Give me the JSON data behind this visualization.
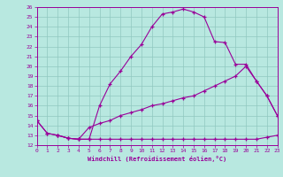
{
  "xlabel": "Windchill (Refroidissement éolien,°C)",
  "bg_color": "#b8e8e0",
  "grid_color": "#90c8c0",
  "line_color": "#990099",
  "xmin": 0,
  "xmax": 23,
  "ymin": 12,
  "ymax": 26,
  "series1_x": [
    0,
    1,
    2,
    3,
    4,
    5,
    6,
    7,
    8,
    9,
    10,
    11,
    12,
    13,
    14,
    15,
    16,
    17,
    18,
    19,
    20,
    21,
    22,
    23
  ],
  "series1_y": [
    14.5,
    13.2,
    13.0,
    12.7,
    12.6,
    12.6,
    16.0,
    18.2,
    19.5,
    21.0,
    22.2,
    24.0,
    25.3,
    25.5,
    25.8,
    25.5,
    25.0,
    22.5,
    22.4,
    20.2,
    20.2,
    18.5,
    17.0,
    15.0
  ],
  "series2_x": [
    0,
    1,
    2,
    3,
    4,
    5,
    6,
    7,
    8,
    9,
    10,
    11,
    12,
    13,
    14,
    15,
    16,
    17,
    18,
    19,
    20,
    21,
    22,
    23
  ],
  "series2_y": [
    14.5,
    13.2,
    13.0,
    12.7,
    12.6,
    13.8,
    14.2,
    14.5,
    15.0,
    15.3,
    15.6,
    16.0,
    16.2,
    16.5,
    16.8,
    17.0,
    17.5,
    18.0,
    18.5,
    19.0,
    20.0,
    18.5,
    17.0,
    15.0
  ],
  "series3_x": [
    2,
    3,
    4,
    5,
    6,
    7,
    8,
    9,
    10,
    11,
    12,
    13,
    14,
    15,
    16,
    17,
    18,
    19,
    20,
    21,
    22,
    23
  ],
  "series3_y": [
    13.0,
    12.7,
    12.6,
    12.6,
    12.6,
    12.6,
    12.6,
    12.6,
    12.6,
    12.6,
    12.6,
    12.6,
    12.6,
    12.6,
    12.6,
    12.6,
    12.6,
    12.6,
    12.6,
    12.6,
    12.8,
    13.0
  ]
}
